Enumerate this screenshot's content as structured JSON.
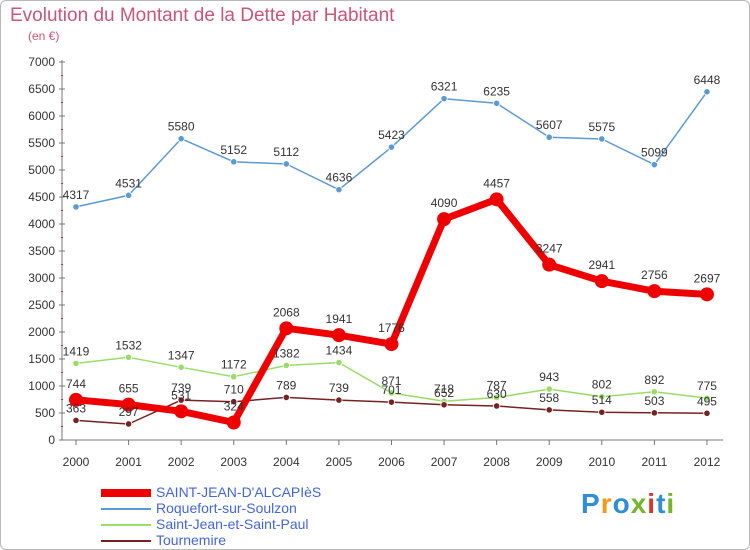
{
  "title": "Evolution du Montant de la Dette par Habitant",
  "subtitle": "(en €)",
  "logo": {
    "text": "Proxiti",
    "colors": [
      "#2e8fd8",
      "#f29a1b",
      "#2e8fd8",
      "#74b52b",
      "#d9332c",
      "#2e8fd8",
      "#74b52b"
    ]
  },
  "chart_data": {
    "type": "line",
    "x": [
      "2000",
      "2001",
      "2002",
      "2003",
      "2004",
      "2005",
      "2006",
      "2007",
      "2008",
      "2009",
      "2010",
      "2011",
      "2012"
    ],
    "ylim": [
      0,
      7000
    ],
    "yticks": [
      "0",
      "500",
      "1000",
      "1500",
      "2000",
      "2500",
      "3000",
      "3500",
      "4000",
      "4500",
      "5000",
      "5500",
      "6000",
      "6500",
      "7000"
    ],
    "grid": false,
    "legend": "bottom-left",
    "series": [
      {
        "name": "Roquefort-sur-Soulzon",
        "color": "#5b9bd5",
        "values": [
          4317,
          4531,
          5580,
          5152,
          5112,
          4636,
          5423,
          6321,
          6235,
          5607,
          5575,
          5099,
          6448
        ],
        "labels": [
          "4317",
          "4531",
          "5580",
          "5152",
          "5112",
          "4636",
          "5423",
          "6321",
          "6235",
          "5607",
          "5575",
          "5099",
          "6448"
        ]
      },
      {
        "name": "Saint-Jean-et-Saint-Paul",
        "color": "#99dd66",
        "values": [
          1419,
          1532,
          1347,
          1172,
          1382,
          1434,
          871,
          718,
          787,
          943,
          802,
          892,
          775
        ],
        "labels": [
          "1419",
          "1532",
          "1347",
          "1172",
          "1382",
          "1434",
          "871",
          "718",
          "787",
          "943",
          "802",
          "892",
          "775"
        ]
      },
      {
        "name": "Tournemire",
        "color": "#772222",
        "values": [
          363,
          297,
          739,
          710,
          789,
          739,
          701,
          652,
          630,
          558,
          514,
          503,
          495
        ],
        "labels": [
          "363",
          "297",
          "739",
          "710",
          "789",
          "739",
          "701",
          "652",
          "630",
          "558",
          "514",
          "503",
          "495"
        ]
      },
      {
        "name": "SAINT-JEAN-D'ALCAPIèS",
        "color": "#ee0000",
        "values": [
          744,
          655,
          531,
          324,
          2068,
          1941,
          1776,
          4090,
          4457,
          3247,
          2941,
          2756,
          2697
        ],
        "labels": [
          "744",
          "655",
          "531",
          "324",
          "2068",
          "1941",
          "1776",
          "4090",
          "4457",
          "3247",
          "2941",
          "2756",
          "2697"
        ]
      }
    ]
  },
  "legend_items": [
    {
      "name": "SAINT-JEAN-D'ALCAPIèS",
      "color": "#ee0000"
    },
    {
      "name": "Roquefort-sur-Soulzon",
      "color": "#5b9bd5"
    },
    {
      "name": "Saint-Jean-et-Saint-Paul",
      "color": "#99dd66"
    },
    {
      "name": "Tournemire",
      "color": "#772222"
    }
  ]
}
